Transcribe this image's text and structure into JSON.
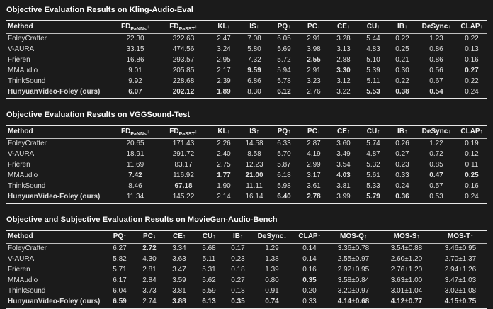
{
  "page": {
    "background": "#1b1b1b",
    "text_color": "#dedede",
    "emphasis_color": "#ffffff",
    "rule_color": "#e9e9e9"
  },
  "tables": [
    {
      "title": "Objective Evaluation Results on Kling-Audio-Eval",
      "columns": [
        {
          "label": "Method"
        },
        {
          "label": "FD",
          "sub": "PaNNs",
          "arrow": "↓"
        },
        {
          "label": "FD",
          "sub": "PaSST",
          "arrow": "↓"
        },
        {
          "label": "KL",
          "arrow": "↓"
        },
        {
          "label": "IS",
          "arrow": "↑"
        },
        {
          "label": "PQ",
          "arrow": "↑"
        },
        {
          "label": "PC",
          "arrow": "↓"
        },
        {
          "label": "CE",
          "arrow": "↑"
        },
        {
          "label": "CU",
          "arrow": "↑"
        },
        {
          "label": "IB",
          "arrow": "↑"
        },
        {
          "label": "DeSync",
          "arrow": "↓"
        },
        {
          "label": "CLAP",
          "arrow": "↑"
        }
      ],
      "rows": [
        {
          "method": "FoleyCrafter",
          "method_bold": false,
          "values": [
            "22.30",
            "322.63",
            "2.47",
            "7.08",
            "6.05",
            "2.91",
            "3.28",
            "5.44",
            "0.22",
            "1.23",
            "0.22"
          ],
          "bold_cols": []
        },
        {
          "method": "V-AURA",
          "method_bold": false,
          "values": [
            "33.15",
            "474.56",
            "3.24",
            "5.80",
            "5.69",
            "3.98",
            "3.13",
            "4.83",
            "0.25",
            "0.86",
            "0.13"
          ],
          "bold_cols": []
        },
        {
          "method": "Frieren",
          "method_bold": false,
          "values": [
            "16.86",
            "293.57",
            "2.95",
            "7.32",
            "5.72",
            "2.55",
            "2.88",
            "5.10",
            "0.21",
            "0.86",
            "0.16"
          ],
          "bold_cols": [
            5
          ]
        },
        {
          "method": "MMAudio",
          "method_bold": false,
          "values": [
            "9.01",
            "205.85",
            "2.17",
            "9.59",
            "5.94",
            "2.91",
            "3.30",
            "5.39",
            "0.30",
            "0.56",
            "0.27"
          ],
          "bold_cols": [
            3,
            6,
            10
          ]
        },
        {
          "method": "ThinkSound",
          "method_bold": false,
          "values": [
            "9.92",
            "228.68",
            "2.39",
            "6.86",
            "5.78",
            "3.23",
            "3.12",
            "5.11",
            "0.22",
            "0.67",
            "0.22"
          ],
          "bold_cols": []
        },
        {
          "method": "HunyuanVideo-Foley (ours)",
          "method_bold": true,
          "values": [
            "6.07",
            "202.12",
            "1.89",
            "8.30",
            "6.12",
            "2.76",
            "3.22",
            "5.53",
            "0.38",
            "0.54",
            "0.24"
          ],
          "bold_cols": [
            0,
            1,
            2,
            4,
            7,
            8,
            9
          ]
        }
      ]
    },
    {
      "title": "Objective Evaluation Results on VGGSound-Test",
      "columns": [
        {
          "label": "Method"
        },
        {
          "label": "FD",
          "sub": "PaNNs",
          "arrow": "↓"
        },
        {
          "label": "FD",
          "sub": "PaSST",
          "arrow": "↓"
        },
        {
          "label": "KL",
          "arrow": "↓"
        },
        {
          "label": "IS",
          "arrow": "↑"
        },
        {
          "label": "PQ",
          "arrow": "↑"
        },
        {
          "label": "PC",
          "arrow": "↓"
        },
        {
          "label": "CE",
          "arrow": "↑"
        },
        {
          "label": "CU",
          "arrow": "↑"
        },
        {
          "label": "IB",
          "arrow": "↑"
        },
        {
          "label": "DeSync",
          "arrow": "↓"
        },
        {
          "label": "CLAP",
          "arrow": "↑"
        }
      ],
      "rows": [
        {
          "method": "FoleyCrafter",
          "method_bold": false,
          "values": [
            "20.65",
            "171.43",
            "2.26",
            "14.58",
            "6.33",
            "2.87",
            "3.60",
            "5.74",
            "0.26",
            "1.22",
            "0.19"
          ],
          "bold_cols": []
        },
        {
          "method": "V-AURA",
          "method_bold": false,
          "values": [
            "18.91",
            "291.72",
            "2.40",
            "8.58",
            "5.70",
            "4.19",
            "3.49",
            "4.87",
            "0.27",
            "0.72",
            "0.12"
          ],
          "bold_cols": []
        },
        {
          "method": "Frieren",
          "method_bold": false,
          "values": [
            "11.69",
            "83.17",
            "2.75",
            "12.23",
            "5.87",
            "2.99",
            "3.54",
            "5.32",
            "0.23",
            "0.85",
            "0.11"
          ],
          "bold_cols": []
        },
        {
          "method": "MMAudio",
          "method_bold": false,
          "values": [
            "7.42",
            "116.92",
            "1.77",
            "21.00",
            "6.18",
            "3.17",
            "4.03",
            "5.61",
            "0.33",
            "0.47",
            "0.25"
          ],
          "bold_cols": [
            0,
            2,
            3,
            6,
            9,
            10
          ]
        },
        {
          "method": "ThinkSound",
          "method_bold": false,
          "values": [
            "8.46",
            "67.18",
            "1.90",
            "11.11",
            "5.98",
            "3.61",
            "3.81",
            "5.33",
            "0.24",
            "0.57",
            "0.16"
          ],
          "bold_cols": [
            1
          ]
        },
        {
          "method": "HunyuanVideo-Foley (ours)",
          "method_bold": true,
          "values": [
            "11.34",
            "145.22",
            "2.14",
            "16.14",
            "6.40",
            "2.78",
            "3.99",
            "5.79",
            "0.36",
            "0.53",
            "0.24"
          ],
          "bold_cols": [
            4,
            5,
            7,
            8
          ]
        }
      ]
    },
    {
      "title": "Objective and Subjective Evaluation Results on MovieGen-Audio-Bench",
      "columns": [
        {
          "label": "Method"
        },
        {
          "label": "PQ",
          "arrow": "↑"
        },
        {
          "label": "PC",
          "arrow": "↓"
        },
        {
          "label": "CE",
          "arrow": "↑"
        },
        {
          "label": "CU",
          "arrow": "↑"
        },
        {
          "label": "IB",
          "arrow": "↑"
        },
        {
          "label": "DeSync",
          "arrow": "↓"
        },
        {
          "label": "CLAP",
          "arrow": "↑"
        },
        {
          "label": "MOS-Q",
          "arrow": "↑"
        },
        {
          "label": "MOS-S",
          "arrow": "↑"
        },
        {
          "label": "MOS-T",
          "arrow": "↑"
        }
      ],
      "rows": [
        {
          "method": "FoleyCrafter",
          "method_bold": false,
          "values": [
            "6.27",
            "2.72",
            "3.34",
            "5.68",
            "0.17",
            "1.29",
            "0.14",
            "3.36±0.78",
            "3.54±0.88",
            "3.46±0.95"
          ],
          "bold_cols": [
            1
          ]
        },
        {
          "method": "V-AURA",
          "method_bold": false,
          "values": [
            "5.82",
            "4.30",
            "3.63",
            "5.11",
            "0.23",
            "1.38",
            "0.14",
            "2.55±0.97",
            "2.60±1.20",
            "2.70±1.37"
          ],
          "bold_cols": []
        },
        {
          "method": "Frieren",
          "method_bold": false,
          "values": [
            "5.71",
            "2.81",
            "3.47",
            "5.31",
            "0.18",
            "1.39",
            "0.16",
            "2.92±0.95",
            "2.76±1.20",
            "2.94±1.26"
          ],
          "bold_cols": []
        },
        {
          "method": "MMAudio",
          "method_bold": false,
          "values": [
            "6.17",
            "2.84",
            "3.59",
            "5.62",
            "0.27",
            "0.80",
            "0.35",
            "3.58±0.84",
            "3.63±1.00",
            "3.47±1.03"
          ],
          "bold_cols": [
            6
          ]
        },
        {
          "method": "ThinkSound",
          "method_bold": false,
          "values": [
            "6.04",
            "3.73",
            "3.81",
            "5.59",
            "0.18",
            "0.91",
            "0.20",
            "3.20±0.97",
            "3.01±1.04",
            "3.02±1.08"
          ],
          "bold_cols": []
        },
        {
          "method": "HunyuanVideo-Foley (ours)",
          "method_bold": true,
          "values": [
            "6.59",
            "2.74",
            "3.88",
            "6.13",
            "0.35",
            "0.74",
            "0.33",
            "4.14±0.68",
            "4.12±0.77",
            "4.15±0.75"
          ],
          "bold_cols": [
            0,
            2,
            3,
            4,
            5,
            7,
            8,
            9
          ]
        }
      ]
    }
  ]
}
